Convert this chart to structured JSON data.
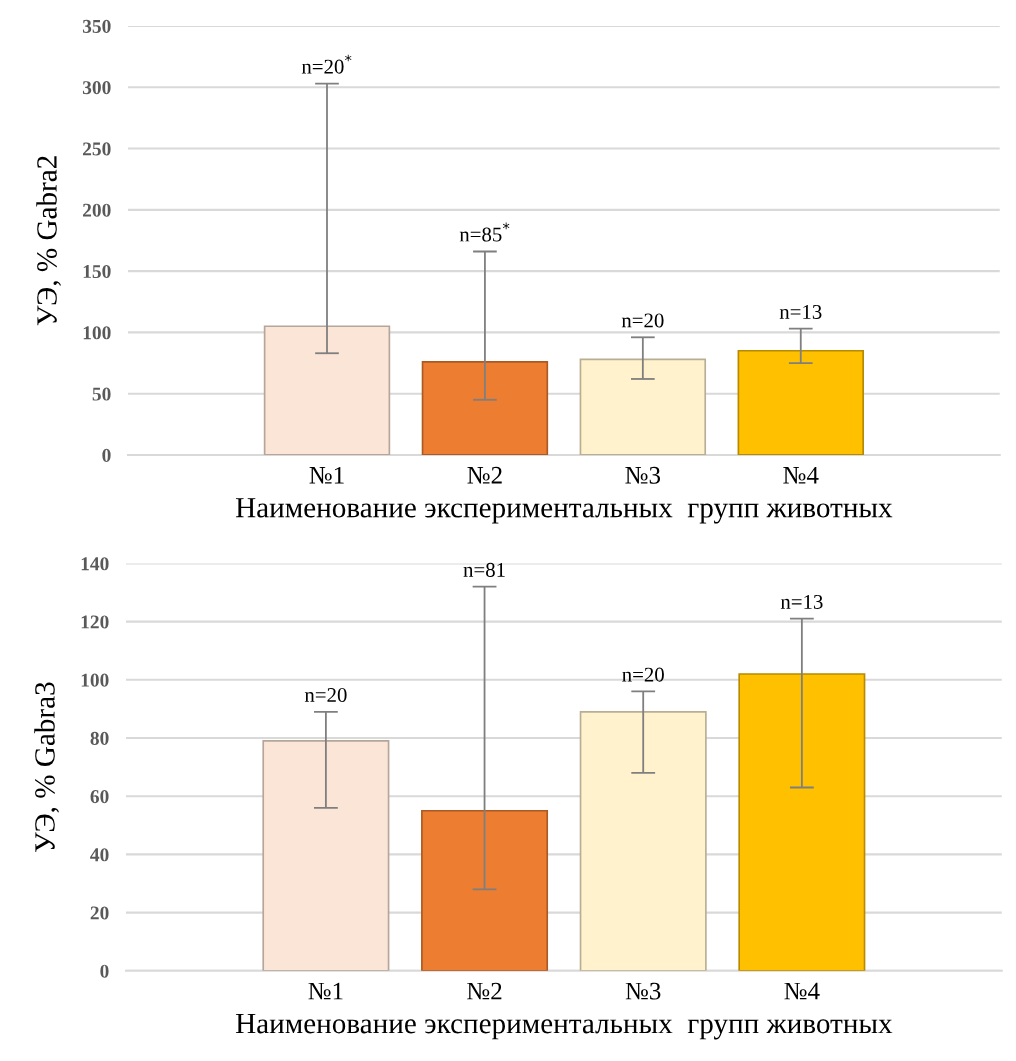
{
  "chart_data": [
    {
      "type": "bar",
      "categories": [
        "№1",
        "№2",
        "№3",
        "№4"
      ],
      "values": [
        105,
        76,
        78,
        85
      ],
      "colors": [
        "#fbe5d6",
        "#ed7d31",
        "#fff2cc",
        "#ffc000"
      ],
      "errors": [
        [
          83,
          303
        ],
        [
          45,
          166
        ],
        [
          62,
          96
        ],
        [
          75,
          103
        ]
      ],
      "ylim": [
        0,
        350
      ],
      "yticks": [
        0,
        50,
        100,
        150,
        200,
        250,
        300,
        350
      ],
      "grid": "y",
      "ylabel": "УЭ, % Gabra2",
      "xlabel": "Наименование экспериментальных  групп животных",
      "annotations": [
        {
          "text": "n=20$^{*}$",
          "x": "№1",
          "y": 303
        },
        {
          "text": "n=85$^{*}$",
          "x": "№2",
          "y": 166
        },
        {
          "text": "n=20",
          "x": "№3",
          "y": 96
        },
        {
          "text": "n=13",
          "x": "№4",
          "y": 103
        }
      ]
    },
    {
      "type": "bar",
      "categories": [
        "№1",
        "№2",
        "№3",
        "№4"
      ],
      "values": [
        79,
        55,
        89,
        102
      ],
      "colors": [
        "#fbe5d6",
        "#ed7d31",
        "#fff2cc",
        "#ffc000"
      ],
      "errors": [
        [
          56,
          89
        ],
        [
          28,
          132
        ],
        [
          68,
          96
        ],
        [
          63,
          121
        ]
      ],
      "ylim": [
        0,
        140
      ],
      "yticks": [
        0,
        20,
        40,
        60,
        80,
        100,
        120,
        140
      ],
      "grid": "y",
      "ylabel": "УЭ, % Gabra3",
      "xlabel": "Наименование экспериментальных  групп животных",
      "annotations": [
        {
          "text": "n=20",
          "x": "№1",
          "y": 89
        },
        {
          "text": "n=81",
          "x": "№2",
          "y": 132
        },
        {
          "text": "n=20",
          "x": "№3",
          "y": 96
        },
        {
          "text": "n=13",
          "x": "№4",
          "y": 121
        }
      ]
    }
  ]
}
